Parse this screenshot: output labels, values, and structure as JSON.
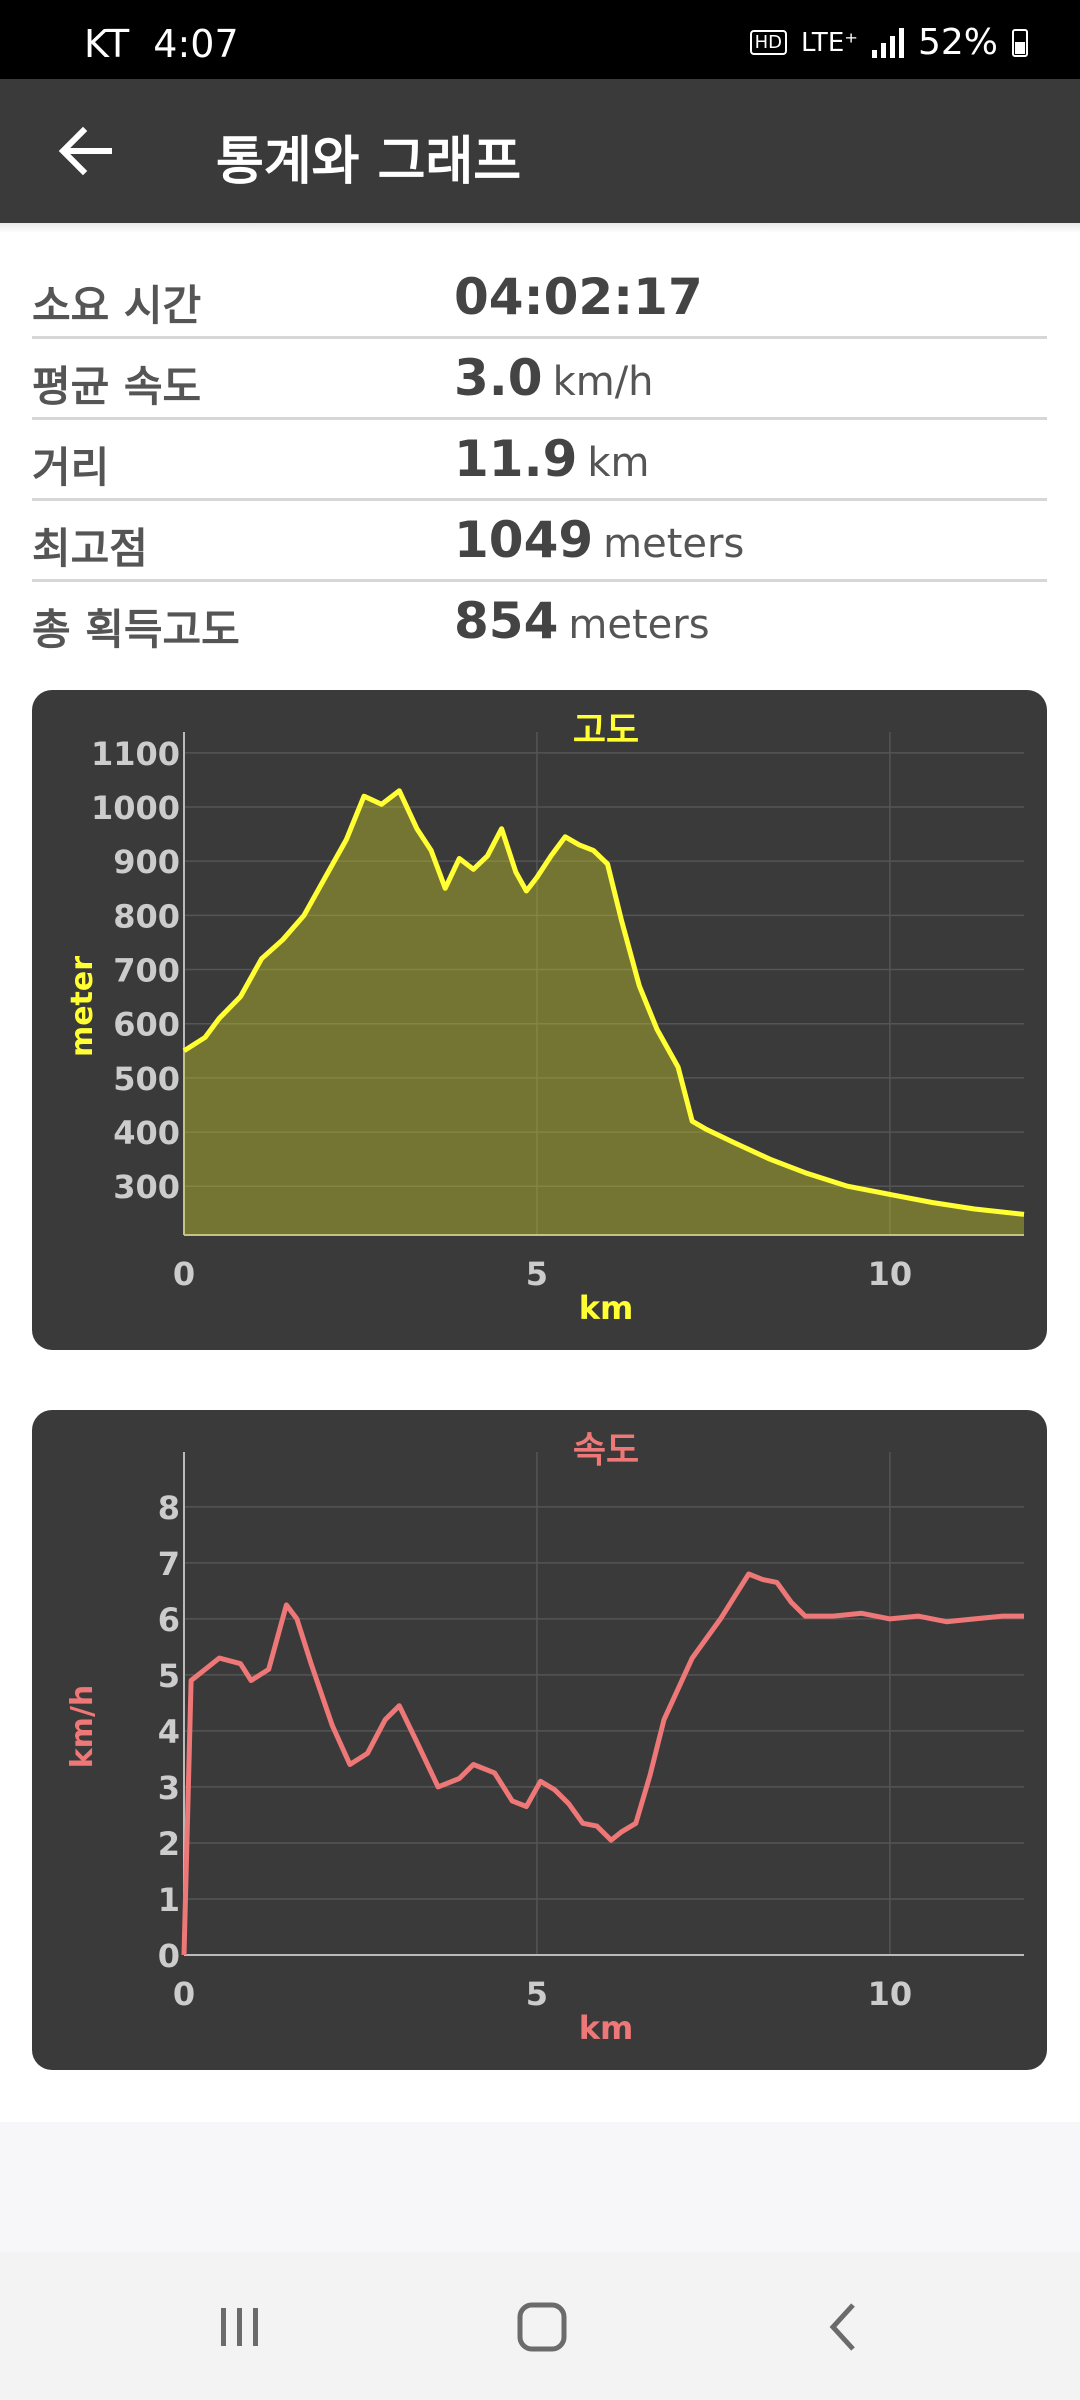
{
  "status_bar": {
    "carrier": "KT",
    "time": "4:07",
    "network": "LTE⁺",
    "hd": "HD",
    "battery": "52%"
  },
  "app_bar": {
    "title": "통계와 그래프"
  },
  "stats": [
    {
      "label": "소요 시간",
      "value": "04:02:17",
      "unit": ""
    },
    {
      "label": "평균 속도",
      "value": "3.0",
      "unit": "km/h"
    },
    {
      "label": "거리",
      "value": "11.9",
      "unit": "km"
    },
    {
      "label": "최고점",
      "value": "1049",
      "unit": "meters"
    },
    {
      "label": "총 획득고도",
      "value": "854",
      "unit": "meters"
    }
  ],
  "colors": {
    "altitude": "#ffff33",
    "speed": "#ee7777",
    "card": "#3a3a3a"
  },
  "icons": {
    "back": "arrow-left-icon",
    "recents": "recents-icon",
    "home": "home-icon",
    "nav_back": "chevron-left-icon"
  },
  "chart_data": [
    {
      "type": "area",
      "title": "고도",
      "xlabel": "km",
      "ylabel": "meter",
      "xlim": [
        0,
        11.9
      ],
      "ylim": [
        210,
        1120
      ],
      "x_ticks": [
        0,
        5,
        10
      ],
      "y_ticks": [
        300,
        400,
        500,
        600,
        700,
        800,
        900,
        1000,
        1100
      ],
      "grid": true,
      "x": [
        0,
        0.3,
        0.5,
        0.8,
        1.1,
        1.4,
        1.7,
        2.0,
        2.3,
        2.55,
        2.8,
        3.05,
        3.3,
        3.5,
        3.7,
        3.9,
        4.1,
        4.3,
        4.5,
        4.7,
        4.85,
        5.0,
        5.2,
        5.4,
        5.6,
        5.8,
        6.0,
        6.2,
        6.45,
        6.7,
        7.0,
        7.2,
        7.4,
        7.8,
        8.3,
        8.8,
        9.4,
        10.0,
        10.6,
        11.2,
        11.9
      ],
      "y": [
        550,
        575,
        610,
        650,
        720,
        755,
        800,
        870,
        940,
        1020,
        1005,
        1030,
        960,
        920,
        850,
        905,
        885,
        910,
        960,
        880,
        845,
        870,
        910,
        945,
        930,
        920,
        895,
        790,
        670,
        590,
        520,
        420,
        405,
        380,
        350,
        325,
        300,
        285,
        270,
        258,
        248
      ]
    },
    {
      "type": "line",
      "title": "속도",
      "xlabel": "km",
      "ylabel": "km/h",
      "xlim": [
        0,
        11.9
      ],
      "ylim": [
        0,
        8.8
      ],
      "x_ticks": [
        0,
        5,
        10
      ],
      "y_ticks": [
        0,
        1,
        2,
        3,
        4,
        5,
        6,
        7,
        8
      ],
      "grid": true,
      "x": [
        0,
        0.1,
        0.3,
        0.5,
        0.8,
        0.95,
        1.2,
        1.45,
        1.6,
        1.8,
        2.1,
        2.35,
        2.6,
        2.85,
        3.05,
        3.3,
        3.6,
        3.9,
        4.1,
        4.4,
        4.65,
        4.85,
        5.05,
        5.25,
        5.45,
        5.65,
        5.85,
        6.05,
        6.2,
        6.4,
        6.6,
        6.8,
        7.2,
        7.6,
        8.0,
        8.2,
        8.4,
        8.6,
        8.8,
        9.2,
        9.6,
        10.0,
        10.4,
        10.8,
        11.2,
        11.6,
        11.9
      ],
      "y": [
        0,
        4.9,
        5.1,
        5.3,
        5.2,
        4.9,
        5.1,
        6.25,
        6.0,
        5.2,
        4.1,
        3.4,
        3.6,
        4.2,
        4.45,
        3.8,
        3.0,
        3.15,
        3.4,
        3.25,
        2.75,
        2.65,
        3.1,
        2.95,
        2.7,
        2.35,
        2.3,
        2.05,
        2.2,
        2.35,
        3.2,
        4.2,
        5.3,
        6.0,
        6.8,
        6.7,
        6.65,
        6.3,
        6.05,
        6.05,
        6.1,
        6.0,
        6.05,
        5.95,
        6.0,
        6.05,
        6.05
      ]
    }
  ]
}
